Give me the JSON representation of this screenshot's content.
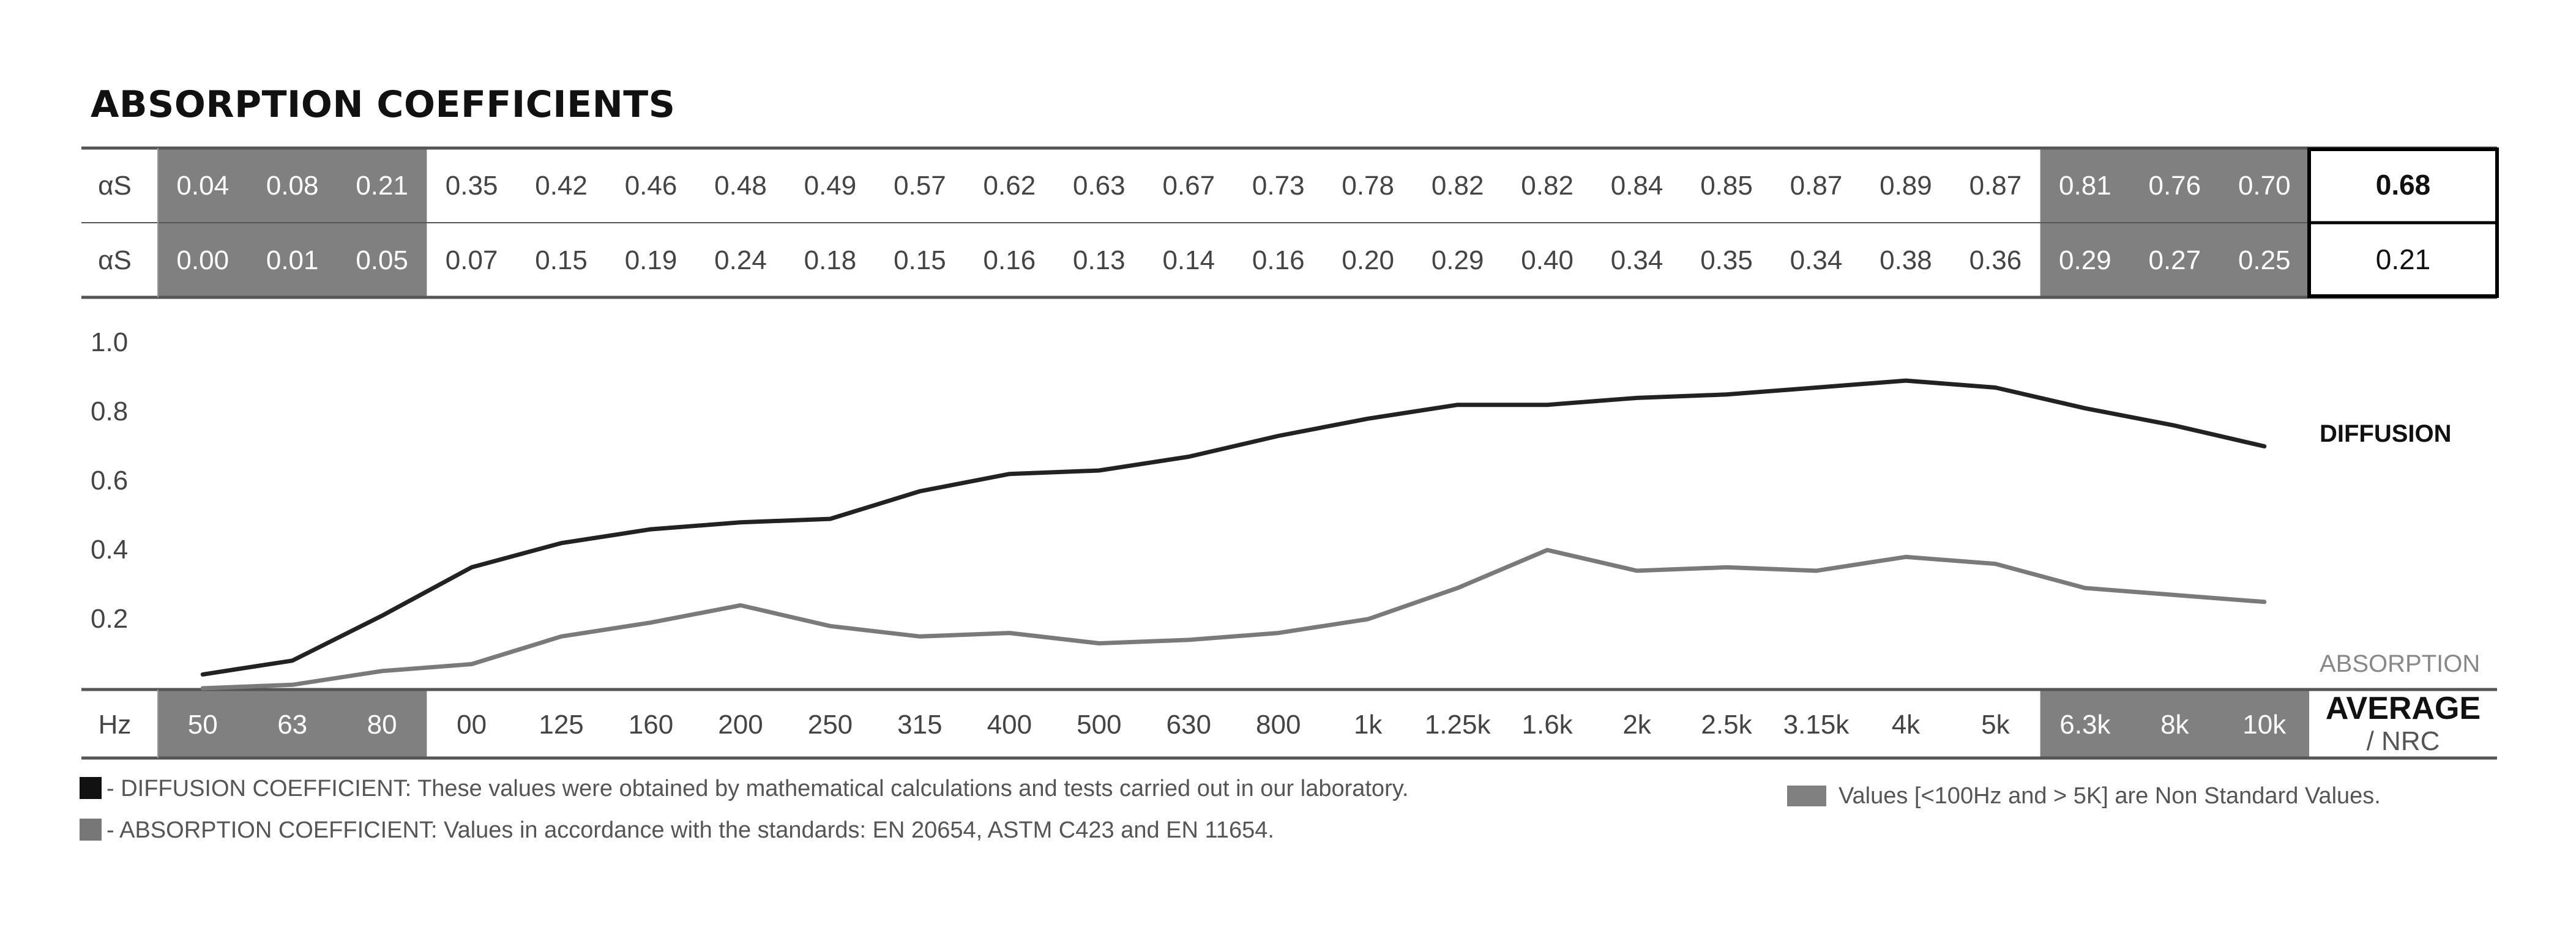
{
  "title": "ABSORPTION COEFFICIENTS",
  "colors": {
    "dark_line": "#222222",
    "light_line": "#7a7a7a",
    "shade": "#808080",
    "rule": "#555555"
  },
  "chart_data": {
    "type": "line",
    "categories": [
      "50",
      "63",
      "80",
      "00",
      "125",
      "160",
      "200",
      "250",
      "315",
      "400",
      "500",
      "630",
      "800",
      "1k",
      "1.25k",
      "1.6k",
      "2k",
      "2.5k",
      "3.15k",
      "4k",
      "5k",
      "6.3k",
      "8k",
      "10k"
    ],
    "row_label": "αS",
    "series": [
      {
        "name": "DIFFUSION",
        "row_values": [
          "0.04",
          "0.08",
          "0.21",
          "0.35",
          "0.42",
          "0.46",
          "0.48",
          "0.49",
          "0.57",
          "0.62",
          "0.63",
          "0.67",
          "0.73",
          "0.78",
          "0.82",
          "0.82",
          "0.84",
          "0.85",
          "0.87",
          "0.89",
          "0.87",
          "0.81",
          "0.76",
          "0.70"
        ],
        "values": [
          0.04,
          0.08,
          0.21,
          0.35,
          0.42,
          0.46,
          0.48,
          0.49,
          0.57,
          0.62,
          0.63,
          0.67,
          0.73,
          0.78,
          0.82,
          0.82,
          0.84,
          0.85,
          0.87,
          0.89,
          0.87,
          0.81,
          0.76,
          0.7
        ],
        "average": "0.68"
      },
      {
        "name": "ABSORPTION",
        "row_values": [
          "0.00",
          "0.01",
          "0.05",
          "0.07",
          "0.15",
          "0.19",
          "0.24",
          "0.18",
          "0.15",
          "0.16",
          "0.13",
          "0.14",
          "0.16",
          "0.20",
          "0.29",
          "0.40",
          "0.34",
          "0.35",
          "0.34",
          "0.38",
          "0.36",
          "0.29",
          "0.27",
          "0.25"
        ],
        "values": [
          0.0,
          0.01,
          0.05,
          0.07,
          0.15,
          0.19,
          0.24,
          0.18,
          0.15,
          0.16,
          0.13,
          0.14,
          0.16,
          0.2,
          0.29,
          0.4,
          0.34,
          0.35,
          0.34,
          0.38,
          0.36,
          0.29,
          0.27,
          0.25
        ],
        "average": "0.21"
      }
    ],
    "shaded_categories": [
      "50",
      "63",
      "80",
      "6.3k",
      "8k",
      "10k"
    ],
    "y_ticks": [
      "0.2",
      "0.4",
      "0.6",
      "0.8",
      "1.0"
    ],
    "ylim": [
      0,
      1.0
    ],
    "xlabel": "Hz",
    "average_label": "AVERAGE",
    "nrc_label": "/ NRC",
    "grid": false
  },
  "footer": {
    "diffusion_note": "- DIFFUSION COEFFICIENT: These values were obtained by mathematical calculations and tests carried out in our laboratory.",
    "absorption_note": "- ABSORPTION COEFFICIENT: Values in accordance with the standards: EN 20654, ASTM C423 and EN 11654.",
    "shade_note": "Values [<100Hz and > 5K] are Non Standard Values."
  }
}
